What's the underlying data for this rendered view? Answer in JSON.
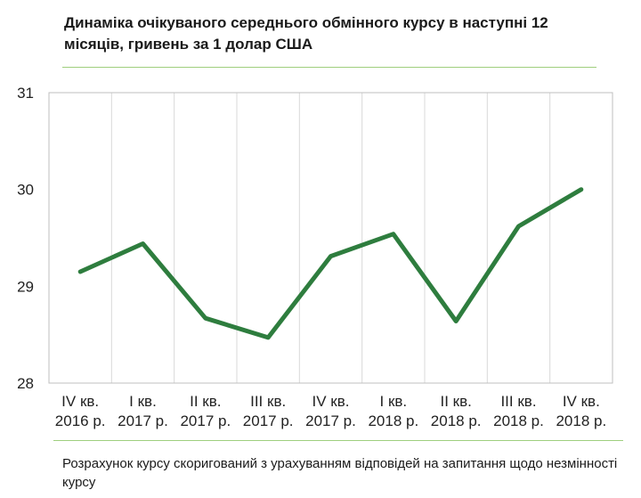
{
  "title": "Динаміка очікуваного середнього обмінного  курсу в наступні 12 місяців, гривень за 1 долар США",
  "footnote": "Розрахунок курсу скоригований з урахуванням відповідей на запитання щодо незмінності курсу",
  "colors": {
    "line": "#2e7d3e",
    "gridline": "#d9d9d9",
    "rule": "#9fcf7e"
  },
  "chart_data": {
    "type": "line",
    "title": "Динаміка очікуваного середнього обмінного  курсу в наступні 12 місяців, гривень за 1 долар США",
    "xlabel": "",
    "ylabel": "",
    "ylim": [
      28,
      31
    ],
    "yticks": [
      28,
      29,
      30,
      31
    ],
    "grid": "vertical",
    "legend": "none",
    "categories": [
      [
        "IV кв.",
        "2016 р."
      ],
      [
        "I кв.",
        "2017 р."
      ],
      [
        "II кв.",
        "2017 р."
      ],
      [
        "III кв.",
        "2017 р."
      ],
      [
        "IV кв.",
        "2017 р."
      ],
      [
        "I кв.",
        "2018 р."
      ],
      [
        "II кв.",
        "2018 р."
      ],
      [
        "III кв.",
        "2018 р."
      ],
      [
        "IV кв.",
        "2018 р."
      ]
    ],
    "series": [
      {
        "values": [
          29.15,
          29.44,
          28.67,
          28.47,
          29.31,
          29.54,
          28.64,
          29.62,
          30.0
        ]
      }
    ]
  }
}
